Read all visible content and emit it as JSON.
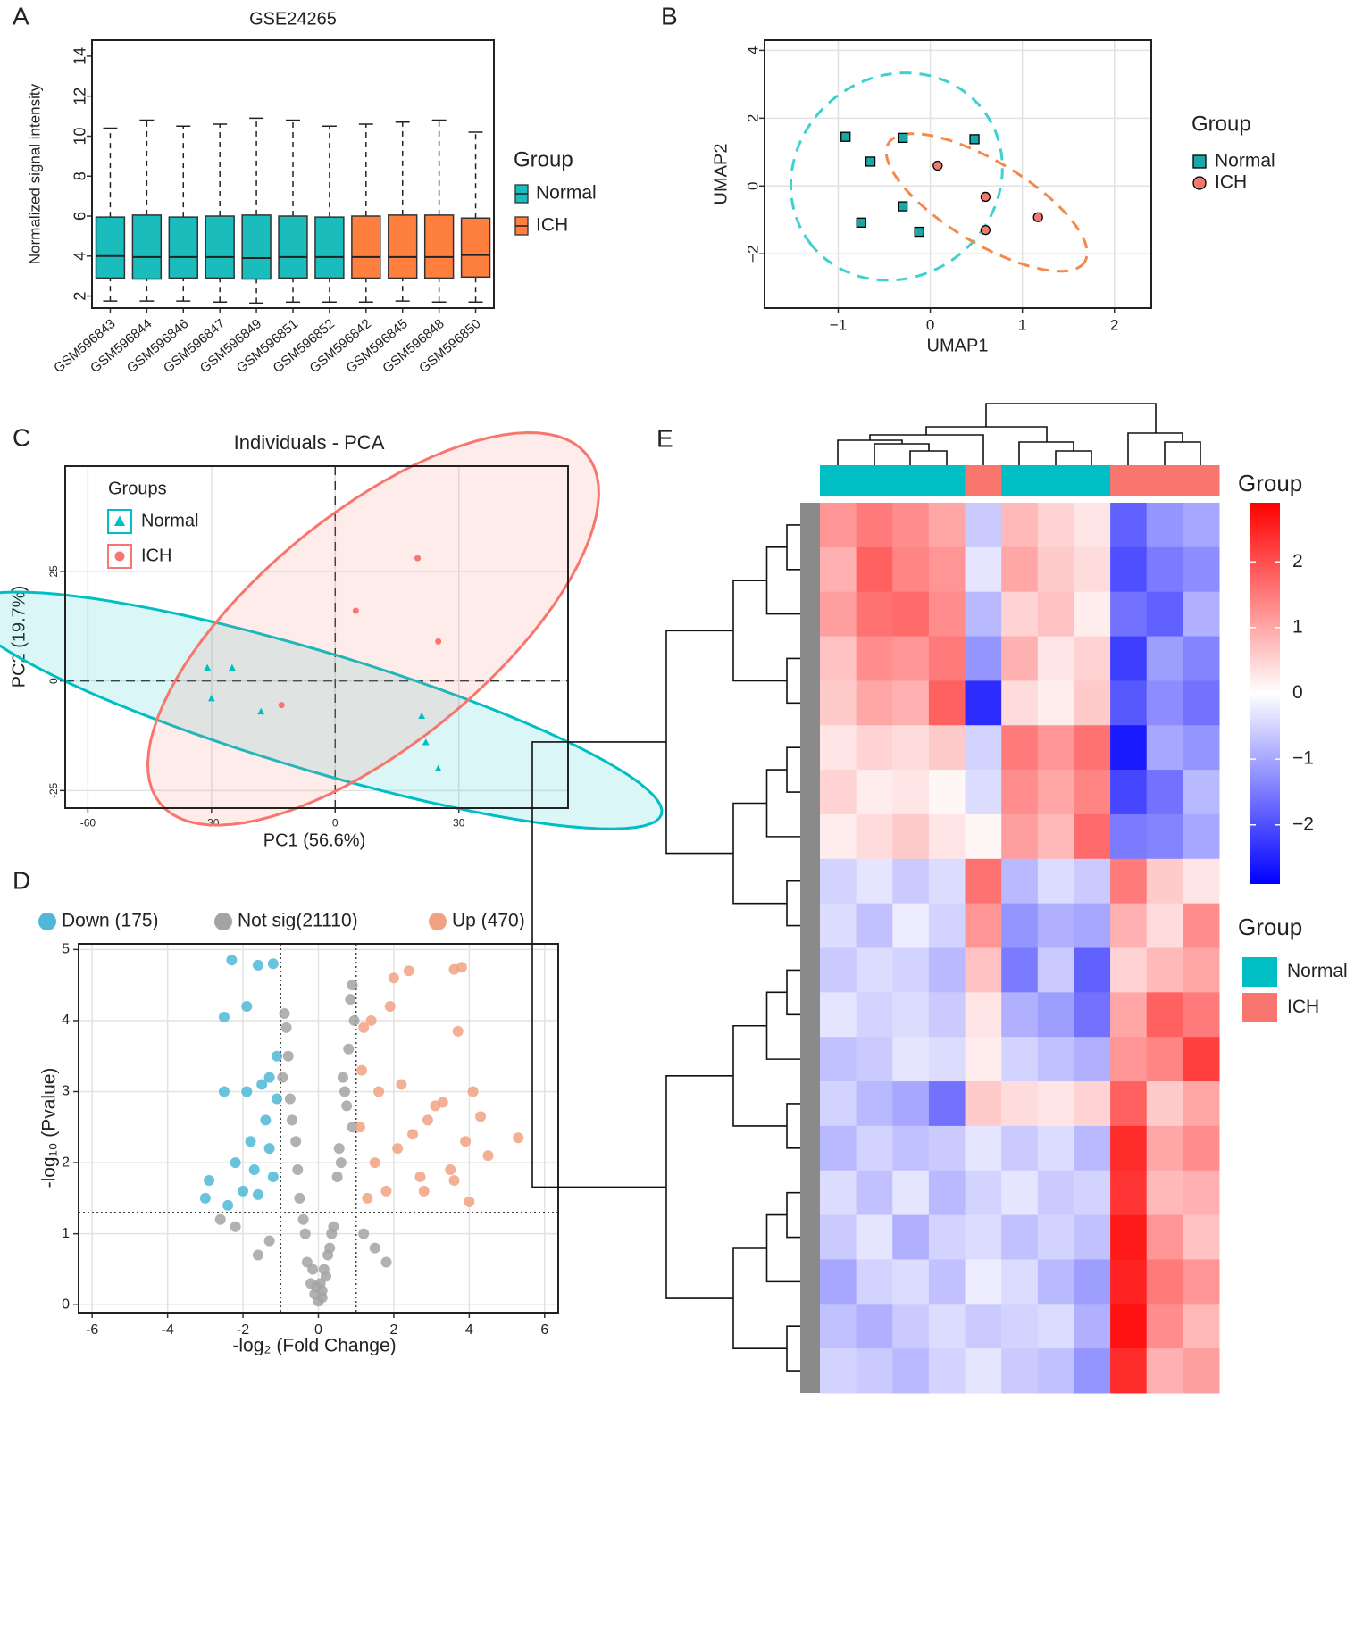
{
  "chart_data": [
    {
      "type": "box",
      "panel_label": "A",
      "title": "GSE24265",
      "y_label": "Normalized signal intensity",
      "ylim": [
        1.4,
        14.8
      ],
      "yticks": [
        2,
        4,
        6,
        8,
        10,
        12,
        14
      ],
      "grid": false,
      "legend": "right",
      "legend_title": "Group",
      "series": [
        {
          "name": "Normal",
          "color": "#1bbcbc",
          "categories": [
            "GSM596843",
            "GSM596844",
            "GSM596846",
            "GSM596847",
            "GSM596849",
            "GSM596851",
            "GSM596852"
          ],
          "min": [
            1.75,
            1.75,
            1.75,
            1.7,
            1.65,
            1.7,
            1.7
          ],
          "q1": [
            2.9,
            2.85,
            2.9,
            2.9,
            2.85,
            2.9,
            2.9
          ],
          "median": [
            4.0,
            3.95,
            3.95,
            3.95,
            3.9,
            3.95,
            3.95
          ],
          "q3": [
            5.95,
            6.05,
            5.95,
            6.0,
            6.05,
            6.0,
            5.95
          ],
          "max": [
            10.4,
            10.8,
            10.5,
            10.6,
            10.9,
            10.8,
            10.5
          ]
        },
        {
          "name": "ICH",
          "color": "#ff7f3f",
          "categories": [
            "GSM596842",
            "GSM596845",
            "GSM596848",
            "GSM596850"
          ],
          "min": [
            1.7,
            1.75,
            1.7,
            1.7
          ],
          "q1": [
            2.9,
            2.9,
            2.9,
            2.95
          ],
          "median": [
            3.95,
            3.95,
            3.95,
            4.05
          ],
          "q3": [
            6.0,
            6.05,
            6.05,
            5.9
          ],
          "max": [
            10.6,
            10.7,
            10.8,
            10.2
          ]
        }
      ]
    },
    {
      "type": "scatter",
      "panel_label": "B",
      "x_label": "UMAP1",
      "y_label": "UMAP2",
      "xlim": [
        -1.8,
        2.4
      ],
      "ylim": [
        -3.6,
        4.3
      ],
      "xticks": [
        {
          "value": -1,
          "label": "−1"
        },
        0,
        1,
        2
      ],
      "yticks": [
        {
          "value": -2,
          "label": "−2"
        },
        0,
        2,
        4
      ],
      "grid": true,
      "legend": "right",
      "legend_title": "Group",
      "ellipse": "dashed",
      "series": [
        {
          "name": "Normal",
          "color": "#1aa7a7",
          "ellipse_color": "#3fd0d0",
          "marker": "square",
          "marker_edge": "#000000",
          "x": [
            -0.92,
            -0.65,
            -0.3,
            0.48,
            -0.75,
            -0.3,
            -0.12
          ],
          "y": [
            1.45,
            0.72,
            1.42,
            1.38,
            -1.08,
            -0.6,
            -1.35
          ]
        },
        {
          "name": "ICH",
          "color": "#f07a70",
          "ellipse_color": "#f5894a",
          "marker": "circle",
          "marker_edge": "#000000",
          "x": [
            0.08,
            0.6,
            1.17,
            0.6
          ],
          "y": [
            0.6,
            -0.32,
            -0.92,
            -1.3
          ]
        }
      ]
    },
    {
      "type": "scatter",
      "panel_label": "C",
      "title": "Individuals - PCA",
      "x_label": "PC1 (56.6%)",
      "y_label": "PC2 (19.7%)",
      "xlim": [
        -65.5,
        56.5
      ],
      "ylim": [
        -29,
        49
      ],
      "xticks": [
        -60,
        -30,
        0,
        30
      ],
      "yticks": [
        -25,
        0,
        25
      ],
      "grid": true,
      "legend": "inside",
      "legend_title": "Groups",
      "ellipse": "filled",
      "ref_lines": {
        "x": [
          0
        ],
        "y": [
          0
        ]
      },
      "ref_line_style": "dashed",
      "series": [
        {
          "name": "Normal",
          "color": "#00bfc4",
          "marker": "triangle",
          "x": [
            -31,
            -25,
            -30,
            -18,
            21,
            22,
            25
          ],
          "y": [
            3,
            3,
            -4,
            -7,
            -8,
            -14,
            -20
          ]
        },
        {
          "name": "ICH",
          "color": "#f8766d",
          "marker": "circle",
          "x": [
            20,
            5,
            25,
            -13
          ],
          "y": [
            28,
            16,
            9,
            -5.5
          ]
        }
      ]
    },
    {
      "type": "scatter",
      "panel_label": "D",
      "x_label": "-log₂ (Fold Change)",
      "y_label": "-log₁₀ (Pvalue)",
      "xlim": [
        -6.36,
        6.36
      ],
      "ylim": [
        -0.11,
        5.08
      ],
      "xticks": [
        -6,
        -4,
        -2,
        0,
        2,
        4,
        6
      ],
      "yticks": [
        0,
        1,
        2,
        3,
        4,
        5
      ],
      "grid": true,
      "legend": "top",
      "ref_lines": {
        "x": [
          -1,
          1
        ],
        "y": [
          1.3
        ]
      },
      "ref_line_style": "dotted",
      "series": [
        {
          "name": "Down (175)",
          "color": "#4fb8d6",
          "marker": "circle",
          "x": [
            -2.3,
            -1.6,
            -1.2,
            -2.5,
            -1.9,
            -2.5,
            -1.5,
            -1.3,
            -2.9,
            -2.2,
            -1.8,
            -1.4,
            -1.1,
            -2.0,
            -1.7,
            -1.3,
            -3.0,
            -2.4,
            -1.6,
            -1.2,
            -1.9,
            -1.1
          ],
          "y": [
            4.85,
            4.78,
            4.8,
            4.05,
            4.2,
            3.0,
            3.1,
            3.2,
            1.75,
            2.0,
            2.3,
            2.6,
            2.9,
            1.6,
            1.9,
            2.2,
            1.5,
            1.4,
            1.55,
            1.8,
            3.0,
            3.5
          ]
        },
        {
          "name": "Not sig(21110)",
          "color": "#a3a3a3",
          "marker": "circle",
          "x": [
            0.1,
            -0.2,
            0.3,
            -0.4,
            0.5,
            -0.6,
            0.7,
            -0.8,
            0.9,
            -0.9,
            0.2,
            -0.3,
            0.4,
            -0.5,
            0.6,
            -0.7,
            0.8,
            0,
            0.1,
            -0.1,
            0.35,
            -0.35,
            0.55,
            -0.55,
            0.75,
            -0.75,
            0.95,
            -0.95,
            1.2,
            -1.3,
            1.5,
            -1.6,
            -2.6,
            -2.2,
            1.8,
            -0.15,
            0.15,
            0.05,
            -0.05,
            0.25,
            0.85,
            -0.85,
            0.65,
            0.9
          ],
          "y": [
            0.1,
            0.3,
            0.8,
            1.2,
            1.8,
            2.3,
            3.0,
            3.5,
            4.5,
            4.1,
            0.4,
            0.6,
            1.1,
            1.5,
            2.0,
            2.6,
            3.6,
            0.05,
            0.2,
            0.15,
            1.0,
            1.0,
            2.2,
            1.9,
            2.8,
            2.9,
            4.0,
            3.2,
            1.0,
            0.9,
            0.8,
            0.7,
            1.2,
            1.1,
            0.6,
            0.5,
            0.5,
            0.3,
            0.25,
            0.7,
            4.3,
            3.9,
            3.2,
            2.5
          ]
        },
        {
          "name": "Up (470)",
          "color": "#f2a283",
          "marker": "circle",
          "x": [
            3.8,
            3.6,
            2.4,
            2.0,
            1.9,
            3.7,
            1.4,
            1.2,
            4.1,
            4.3,
            3.3,
            2.9,
            2.5,
            2.1,
            1.5,
            1.1,
            5.3,
            4.5,
            3.5,
            2.7,
            1.8,
            1.3,
            3.6,
            3.9,
            2.2,
            1.6,
            2.8,
            3.1,
            1.15,
            4.0
          ],
          "y": [
            4.75,
            4.72,
            4.7,
            4.6,
            4.2,
            3.85,
            4.0,
            3.9,
            3.0,
            2.65,
            2.85,
            2.6,
            2.4,
            2.2,
            2.0,
            2.5,
            2.35,
            2.1,
            1.9,
            1.8,
            1.6,
            1.5,
            1.75,
            2.3,
            3.1,
            3.0,
            1.6,
            2.8,
            3.3,
            1.45
          ]
        }
      ]
    },
    {
      "type": "heatmap",
      "panel_label": "E",
      "colorbar_title": "Group",
      "legend_title": "Group",
      "zlim": [
        -2.9,
        2.9
      ],
      "colorbar_ticks": [
        2,
        1,
        0,
        {
          "value": -1,
          "label": "−1"
        },
        {
          "value": -2,
          "label": "−2"
        }
      ],
      "colors": {
        "low": "#0000ff",
        "mid": "#ffffff",
        "high": "#ff0000"
      },
      "groups": [
        {
          "name": "Normal",
          "color": "#00bfc4"
        },
        {
          "name": "ICH",
          "color": "#f8766d"
        }
      ],
      "column_groups": [
        "Normal",
        "Normal",
        "Normal",
        "Normal",
        "ICH",
        "Normal",
        "Normal",
        "Normal",
        "ICH",
        "ICH",
        "ICH"
      ],
      "values": [
        [
          1.2,
          1.5,
          1.3,
          1.0,
          -0.6,
          0.8,
          0.5,
          0.3,
          -1.8,
          -1.2,
          -1.0
        ],
        [
          0.9,
          1.8,
          1.4,
          1.2,
          -0.3,
          1.0,
          0.6,
          0.4,
          -2.0,
          -1.5,
          -1.3
        ],
        [
          1.1,
          1.6,
          1.7,
          1.3,
          -0.8,
          0.5,
          0.7,
          0.2,
          -1.6,
          -1.8,
          -0.9
        ],
        [
          0.7,
          1.3,
          1.2,
          1.5,
          -1.2,
          0.9,
          0.3,
          0.5,
          -2.2,
          -1.1,
          -1.4
        ],
        [
          0.6,
          1.0,
          0.9,
          1.8,
          -2.4,
          0.4,
          0.2,
          0.6,
          -1.9,
          -1.3,
          -1.6
        ],
        [
          0.3,
          0.5,
          0.4,
          0.6,
          -0.5,
          1.5,
          1.2,
          1.6,
          -2.6,
          -1.0,
          -1.2
        ],
        [
          0.5,
          0.2,
          0.3,
          0.1,
          -0.4,
          1.3,
          1.0,
          1.4,
          -2.1,
          -1.6,
          -0.8
        ],
        [
          0.2,
          0.4,
          0.6,
          0.3,
          0.1,
          1.1,
          0.8,
          1.7,
          -1.5,
          -1.4,
          -1.0
        ],
        [
          -0.5,
          -0.3,
          -0.6,
          -0.4,
          1.6,
          -0.8,
          -0.4,
          -0.6,
          1.5,
          0.6,
          0.3
        ],
        [
          -0.4,
          -0.7,
          -0.2,
          -0.5,
          1.2,
          -1.2,
          -0.9,
          -1.0,
          0.9,
          0.4,
          1.3
        ],
        [
          -0.6,
          -0.4,
          -0.5,
          -0.8,
          0.7,
          -1.5,
          -0.6,
          -1.8,
          0.5,
          0.8,
          1.0
        ],
        [
          -0.3,
          -0.5,
          -0.4,
          -0.6,
          0.3,
          -0.9,
          -1.1,
          -1.6,
          1.0,
          1.8,
          1.5
        ],
        [
          -0.7,
          -0.6,
          -0.3,
          -0.4,
          0.2,
          -0.5,
          -0.7,
          -0.9,
          1.2,
          1.4,
          2.2
        ],
        [
          -0.5,
          -0.8,
          -1.0,
          -1.6,
          0.6,
          0.4,
          0.3,
          0.5,
          1.8,
          0.6,
          1.0
        ],
        [
          -0.8,
          -0.5,
          -0.7,
          -0.6,
          -0.3,
          -0.6,
          -0.4,
          -0.8,
          2.4,
          1.0,
          1.3
        ],
        [
          -0.4,
          -0.7,
          -0.3,
          -0.8,
          -0.5,
          -0.3,
          -0.6,
          -0.5,
          2.3,
          0.8,
          0.9
        ],
        [
          -0.6,
          -0.3,
          -0.9,
          -0.5,
          -0.4,
          -0.7,
          -0.5,
          -0.7,
          2.6,
          1.2,
          0.7
        ],
        [
          -1.0,
          -0.5,
          -0.4,
          -0.7,
          -0.2,
          -0.4,
          -0.8,
          -1.1,
          2.5,
          1.5,
          1.2
        ],
        [
          -0.7,
          -0.9,
          -0.6,
          -0.4,
          -0.6,
          -0.5,
          -0.4,
          -0.9,
          2.7,
          1.3,
          0.8
        ],
        [
          -0.5,
          -0.6,
          -0.8,
          -0.5,
          -0.3,
          -0.6,
          -0.7,
          -1.2,
          2.4,
          0.9,
          1.1
        ]
      ]
    }
  ]
}
